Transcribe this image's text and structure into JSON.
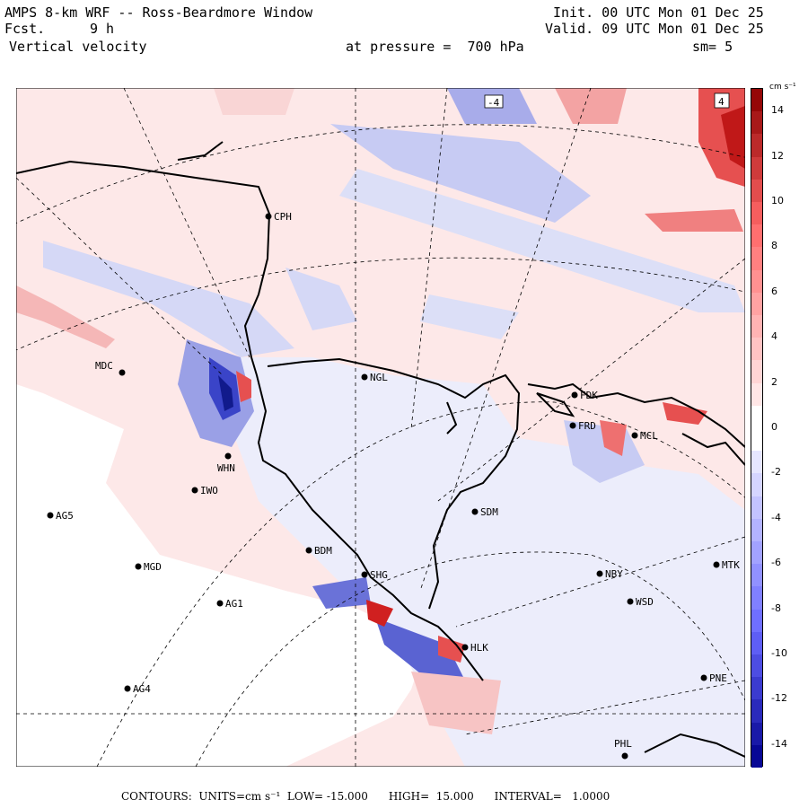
{
  "header": {
    "title": "AMPS 8-km WRF -- Ross-Beardmore Window",
    "fcst_label": "Fcst.",
    "fcst_value": "9 h",
    "field": "Vertical velocity",
    "init": "Init. 00 UTC Mon 01 Dec 25",
    "valid": "Valid. 09 UTC Mon 01 Dec 25",
    "pressure": "at pressure =  700 hPa",
    "smooth": "sm= 5"
  },
  "colorbar": {
    "units": "cm s⁻¹",
    "min": -15,
    "max": 15,
    "ticks": [
      "14",
      "12",
      "10",
      "8",
      "6",
      "4",
      "2",
      "0",
      "-2",
      "-4",
      "-6",
      "-8",
      "-10",
      "-12",
      "-14"
    ],
    "colors": {
      "pos_max": "#8b0000",
      "neg_max": "#00008b",
      "zero": "#ffffff"
    }
  },
  "map": {
    "corner_labels": [
      "-4",
      "4"
    ],
    "stations": [
      {
        "name": "CPH"
      },
      {
        "name": "NGL"
      },
      {
        "name": "MDC"
      },
      {
        "name": "FDK"
      },
      {
        "name": "FRD"
      },
      {
        "name": "MCL"
      },
      {
        "name": "WHN"
      },
      {
        "name": "IWO"
      },
      {
        "name": "AG5"
      },
      {
        "name": "SDM"
      },
      {
        "name": "BDM"
      },
      {
        "name": "MGD"
      },
      {
        "name": "SHG"
      },
      {
        "name": "NBY"
      },
      {
        "name": "MTK"
      },
      {
        "name": "AG1"
      },
      {
        "name": "WSD"
      },
      {
        "name": "HLK"
      },
      {
        "name": "PNE"
      },
      {
        "name": "AG4"
      },
      {
        "name": "PHL"
      }
    ]
  },
  "footer": {
    "text": "CONTOURS:  UNITS=cm s⁻¹  LOW= -15.000      HIGH=  15.000      INTERVAL=   1.0000"
  }
}
